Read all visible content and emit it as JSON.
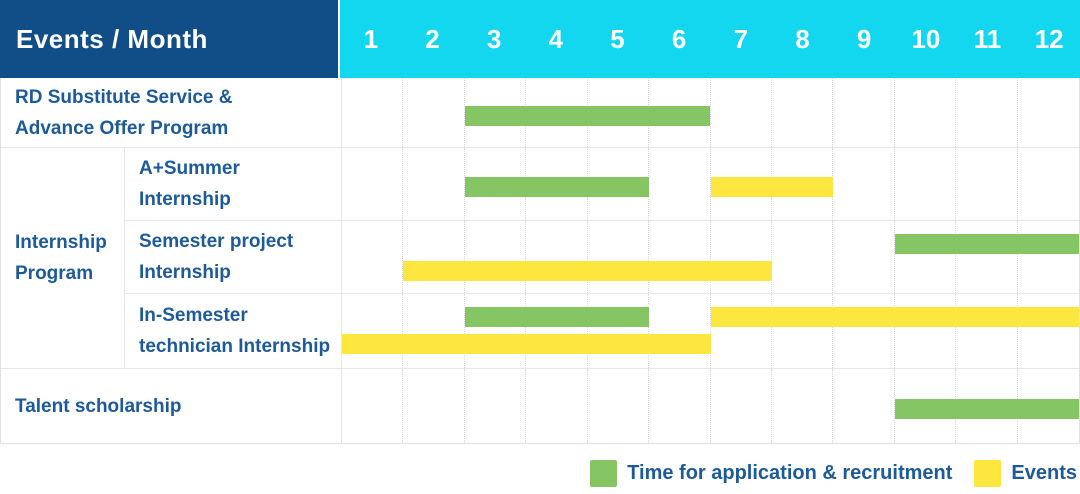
{
  "header": {
    "title": "Events / Month",
    "months": [
      "1",
      "2",
      "3",
      "4",
      "5",
      "6",
      "7",
      "8",
      "9",
      "10",
      "11",
      "12"
    ]
  },
  "groups": [
    {
      "name": "Internship Program",
      "label_lines": [
        "Internship",
        "Program"
      ]
    }
  ],
  "legend": {
    "items": [
      {
        "key": "application",
        "label": "Time for application & recruitment",
        "color": "#85c564"
      },
      {
        "key": "events",
        "label": "Events",
        "color": "#fde63d"
      }
    ]
  },
  "colors": {
    "header_bg": "#114e87",
    "months_bg": "#13d6ef",
    "label_text": "#1c5a9b",
    "green": "#85c564",
    "yellow": "#fde63d",
    "grid_dotted": "#d8d8d8",
    "row_line": "#e6e6e6"
  },
  "chart_data": {
    "type": "gantt",
    "title": "Events / Month",
    "x_unit": "month",
    "x_ticks": [
      1,
      2,
      3,
      4,
      5,
      6,
      7,
      8,
      9,
      10,
      11,
      12
    ],
    "x_range": [
      1,
      12
    ],
    "grid": "dotted-vertical-month-lines",
    "legend_position": "bottom-right",
    "bar_colors": {
      "application": "#85c564",
      "events": "#fde63d"
    },
    "bar_meaning": {
      "application": "Time for application & recruitment",
      "events": "Events"
    },
    "rows": [
      {
        "label": "RD Substitute Service & Advance Offer Program",
        "label_lines": [
          "RD Substitute Service &",
          "Advance Offer Program"
        ],
        "group": null,
        "bars": [
          {
            "category": "application",
            "start_month": 3,
            "end_month": 6,
            "lane": "mid"
          }
        ]
      },
      {
        "label": "A+Summer Internship",
        "label_lines": [
          "A+Summer",
          "Internship"
        ],
        "group": "Internship Program",
        "bars": [
          {
            "category": "application",
            "start_month": 3,
            "end_month": 5,
            "lane": "mid"
          },
          {
            "category": "events",
            "start_month": 7,
            "end_month": 8,
            "lane": "mid"
          }
        ]
      },
      {
        "label": "Semester project Internship",
        "label_lines": [
          "Semester project",
          "Internship"
        ],
        "group": "Internship Program",
        "bars": [
          {
            "category": "application",
            "start_month": 10,
            "end_month": 12,
            "lane": "top"
          },
          {
            "category": "events",
            "start_month": 2,
            "end_month": 7,
            "lane": "bottom"
          }
        ]
      },
      {
        "label": "In-Semester technician Internship",
        "label_lines": [
          "In-Semester",
          "technician Internship"
        ],
        "group": "Internship Program",
        "bars": [
          {
            "category": "application",
            "start_month": 3,
            "end_month": 5,
            "lane": "top"
          },
          {
            "category": "events",
            "start_month": 7,
            "end_month": 12,
            "lane": "top"
          },
          {
            "category": "events",
            "start_month": 1,
            "end_month": 6,
            "lane": "bottom"
          }
        ]
      },
      {
        "label": "Talent scholarship",
        "label_lines": [
          "Talent scholarship"
        ],
        "group": null,
        "bars": [
          {
            "category": "application",
            "start_month": 10,
            "end_month": 12,
            "lane": "mid"
          }
        ]
      }
    ]
  }
}
